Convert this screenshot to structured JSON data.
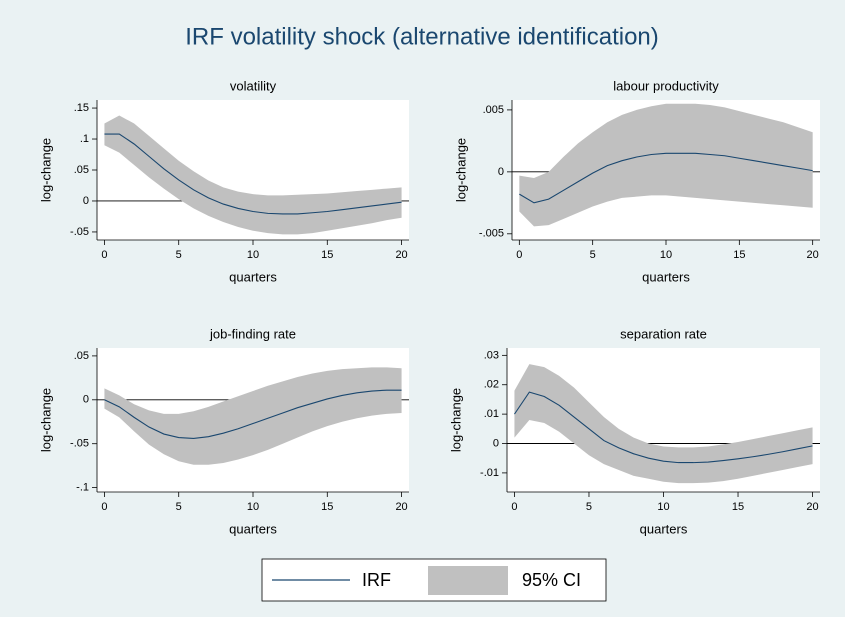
{
  "title": "IRF volatility shock (alternative identification)",
  "legend": [
    "IRF",
    "95% CI"
  ],
  "line_color": "#1a476f",
  "band_color": "#c0c0c0",
  "chart_data": [
    {
      "type": "line",
      "title": "volatility",
      "xlabel": "quarters",
      "ylabel": "log-change",
      "x": [
        0,
        1,
        2,
        3,
        4,
        5,
        6,
        7,
        8,
        9,
        10,
        11,
        12,
        13,
        14,
        15,
        16,
        17,
        18,
        19,
        20
      ],
      "values": [
        0.108,
        0.108,
        0.092,
        0.072,
        0.052,
        0.034,
        0.018,
        0.005,
        -0.005,
        -0.012,
        -0.017,
        -0.02,
        -0.021,
        -0.021,
        -0.019,
        -0.017,
        -0.014,
        -0.011,
        -0.008,
        -0.005,
        -0.002
      ],
      "upper": [
        0.125,
        0.138,
        0.125,
        0.105,
        0.085,
        0.065,
        0.048,
        0.033,
        0.022,
        0.015,
        0.011,
        0.009,
        0.009,
        0.01,
        0.011,
        0.012,
        0.014,
        0.016,
        0.018,
        0.02,
        0.022
      ],
      "lower": [
        0.09,
        0.078,
        0.058,
        0.038,
        0.02,
        0.003,
        -0.012,
        -0.024,
        -0.034,
        -0.042,
        -0.048,
        -0.052,
        -0.054,
        -0.054,
        -0.052,
        -0.048,
        -0.044,
        -0.04,
        -0.036,
        -0.031,
        -0.027
      ],
      "xlim": [
        -0.5,
        20.5
      ],
      "ylim": [
        -0.063,
        0.163
      ],
      "xticks": [
        0,
        5,
        10,
        15,
        20
      ],
      "yticks": [
        {
          "value": -0.05,
          "label": "-.05"
        },
        0,
        {
          "value": 0.05,
          "label": ".05"
        },
        {
          "value": 0.1,
          "label": ".1"
        },
        {
          "value": 0.15,
          "label": ".15"
        }
      ],
      "refline": 0
    },
    {
      "type": "line",
      "title": "labour productivity",
      "xlabel": "quarters",
      "ylabel": "log-change",
      "x": [
        0,
        1,
        2,
        3,
        4,
        5,
        6,
        7,
        8,
        9,
        10,
        11,
        12,
        13,
        14,
        15,
        16,
        17,
        18,
        19,
        20
      ],
      "values": [
        -0.0018,
        -0.0025,
        -0.0022,
        -0.0015,
        -0.0008,
        -0.0001,
        0.0005,
        0.0009,
        0.0012,
        0.0014,
        0.0015,
        0.0015,
        0.0015,
        0.0014,
        0.0013,
        0.0011,
        0.0009,
        0.0007,
        0.0005,
        0.0003,
        0.0001
      ],
      "upper": [
        -0.0003,
        -0.0005,
        0,
        0.0012,
        0.0023,
        0.0032,
        0.004,
        0.0046,
        0.005,
        0.0053,
        0.0055,
        0.0055,
        0.0055,
        0.0054,
        0.0052,
        0.0049,
        0.0046,
        0.0043,
        0.004,
        0.0036,
        0.0032
      ],
      "lower": [
        -0.0032,
        -0.0044,
        -0.0043,
        -0.0038,
        -0.0033,
        -0.0028,
        -0.0024,
        -0.0021,
        -0.002,
        -0.0019,
        -0.0019,
        -0.002,
        -0.0021,
        -0.0022,
        -0.0023,
        -0.0024,
        -0.0025,
        -0.0026,
        -0.0027,
        -0.0028,
        -0.0029
      ],
      "xlim": [
        -0.5,
        20.5
      ],
      "ylim": [
        -0.0055,
        0.0058
      ],
      "xticks": [
        0,
        5,
        10,
        15,
        20
      ],
      "yticks": [
        {
          "value": -0.005,
          "label": "-.005"
        },
        0,
        {
          "value": 0.005,
          "label": ".005"
        }
      ],
      "refline": 0
    },
    {
      "type": "line",
      "title": "job-finding rate",
      "xlabel": "quarters",
      "ylabel": "log-change",
      "x": [
        0,
        1,
        2,
        3,
        4,
        5,
        6,
        7,
        8,
        9,
        10,
        11,
        12,
        13,
        14,
        15,
        16,
        17,
        18,
        19,
        20
      ],
      "values": [
        0,
        -0.008,
        -0.02,
        -0.031,
        -0.039,
        -0.043,
        -0.044,
        -0.042,
        -0.038,
        -0.033,
        -0.027,
        -0.021,
        -0.015,
        -0.009,
        -0.004,
        0.001,
        0.005,
        0.008,
        0.01,
        0.011,
        0.011
      ],
      "upper": [
        0.013,
        0.005,
        -0.005,
        -0.012,
        -0.016,
        -0.016,
        -0.013,
        -0.008,
        -0.002,
        0.004,
        0.01,
        0.016,
        0.021,
        0.026,
        0.03,
        0.033,
        0.035,
        0.036,
        0.037,
        0.037,
        0.036
      ],
      "lower": [
        -0.01,
        -0.02,
        -0.036,
        -0.051,
        -0.062,
        -0.07,
        -0.074,
        -0.074,
        -0.072,
        -0.068,
        -0.063,
        -0.057,
        -0.05,
        -0.043,
        -0.036,
        -0.03,
        -0.025,
        -0.021,
        -0.018,
        -0.016,
        -0.015
      ],
      "xlim": [
        -0.5,
        20.5
      ],
      "ylim": [
        -0.105,
        0.059
      ],
      "xticks": [
        0,
        5,
        10,
        15,
        20
      ],
      "yticks": [
        {
          "value": -0.1,
          "label": "-.1"
        },
        {
          "value": -0.05,
          "label": "-.05"
        },
        0,
        {
          "value": 0.05,
          "label": ".05"
        }
      ],
      "refline": 0
    },
    {
      "type": "line",
      "title": "separation rate",
      "xlabel": "quarters",
      "ylabel": "log-change",
      "x": [
        0,
        1,
        2,
        3,
        4,
        5,
        6,
        7,
        8,
        9,
        10,
        11,
        12,
        13,
        14,
        15,
        16,
        17,
        18,
        19,
        20
      ],
      "values": [
        0.01,
        0.0175,
        0.016,
        0.013,
        0.009,
        0.005,
        0.001,
        -0.0015,
        -0.0035,
        -0.005,
        -0.006,
        -0.0065,
        -0.0065,
        -0.0063,
        -0.0058,
        -0.0052,
        -0.0045,
        -0.0037,
        -0.0028,
        -0.0018,
        -0.0008
      ],
      "upper": [
        0.018,
        0.027,
        0.026,
        0.023,
        0.019,
        0.014,
        0.009,
        0.005,
        0.002,
        0,
        -0.001,
        -0.0013,
        -0.0013,
        -0.001,
        -0.0003,
        0.0005,
        0.0015,
        0.0025,
        0.0035,
        0.0045,
        0.0055
      ],
      "lower": [
        0.002,
        0.008,
        0.007,
        0.004,
        0,
        -0.004,
        -0.007,
        -0.009,
        -0.011,
        -0.012,
        -0.013,
        -0.0135,
        -0.0135,
        -0.0133,
        -0.0128,
        -0.012,
        -0.011,
        -0.01,
        -0.009,
        -0.008,
        -0.007
      ],
      "xlim": [
        -0.5,
        20.5
      ],
      "ylim": [
        -0.0165,
        0.0325
      ],
      "xticks": [
        0,
        5,
        10,
        15,
        20
      ],
      "yticks": [
        {
          "value": -0.01,
          "label": "-.01"
        },
        0,
        {
          "value": 0.01,
          "label": ".01"
        },
        {
          "value": 0.02,
          "label": ".02"
        },
        {
          "value": 0.03,
          "label": ".03"
        }
      ],
      "refline": 0
    }
  ]
}
